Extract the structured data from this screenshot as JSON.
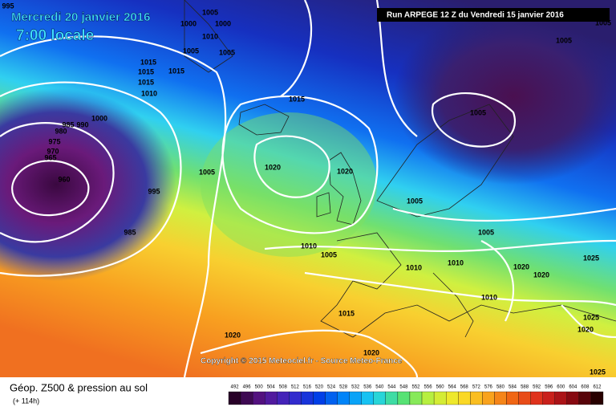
{
  "header": {
    "date": "Mercredi 20 janvier 2016",
    "time": "7:00 locale",
    "run": "Run ARPEGE 12 Z du Vendredi 15 janvier 2016"
  },
  "copyright": "Copyright © 2015 Meteociel.fr - Source Meteo-France",
  "legend": {
    "title": "Géop. Z500 & pression au sol",
    "lead": "(+ 114h)",
    "scale": [
      492,
      496,
      500,
      504,
      508,
      512,
      516,
      520,
      524,
      528,
      532,
      536,
      540,
      544,
      548,
      552,
      556,
      560,
      564,
      568,
      572,
      576,
      580,
      584,
      588,
      592,
      596,
      600,
      604,
      608,
      612
    ]
  },
  "isobar_labels": [
    995,
    1005,
    1000,
    1000,
    1010,
    1005,
    1005,
    1015,
    1015,
    1015,
    1015,
    1010,
    1000,
    985,
    990,
    980,
    975,
    970,
    965,
    960,
    995,
    985,
    1005,
    1015,
    1020,
    1020,
    1010,
    1005,
    1010,
    1010,
    1005,
    1020,
    1020,
    1025,
    1010,
    1015,
    1020,
    1020,
    1025,
    1020,
    1025,
    1005,
    1005,
    1005,
    1005
  ]
}
